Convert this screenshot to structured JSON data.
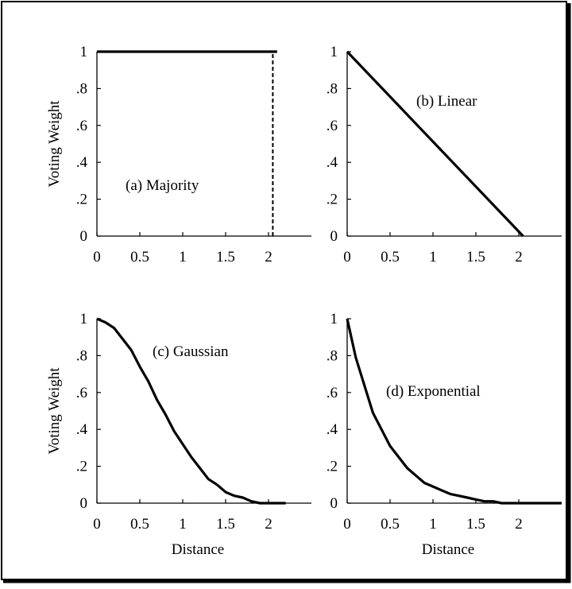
{
  "chart_data": [
    {
      "type": "line",
      "annotation": "(a) Majority",
      "ylabel": "Voting Weight",
      "xlabel": "",
      "xlim": [
        0,
        2.5
      ],
      "ylim": [
        0,
        1
      ],
      "x_ticks": [
        "0",
        "0.5",
        "1",
        "1.5",
        "2"
      ],
      "y_ticks": [
        "0",
        ".2",
        ".4",
        ".6",
        ".8",
        "1"
      ],
      "series": [
        {
          "x": [
            0,
            2.1
          ],
          "y": [
            1,
            1
          ],
          "style": "solid"
        },
        {
          "x": [
            2.05,
            2.05
          ],
          "y": [
            0,
            1
          ],
          "style": "dashed"
        }
      ]
    },
    {
      "type": "line",
      "annotation": "(b) Linear",
      "ylabel": "",
      "xlabel": "",
      "xlim": [
        0,
        2.5
      ],
      "ylim": [
        0,
        1
      ],
      "x_ticks": [
        "0",
        "0.5",
        "1",
        "1.5",
        "2"
      ],
      "y_ticks": [
        "0",
        ".2",
        ".4",
        ".6",
        ".8",
        "1"
      ],
      "series": [
        {
          "x": [
            0,
            2.05
          ],
          "y": [
            1,
            0
          ],
          "style": "solid"
        }
      ]
    },
    {
      "type": "line",
      "annotation": "(c) Gaussian",
      "ylabel": "Voting Weight",
      "xlabel": "Distance",
      "xlim": [
        0,
        2.5
      ],
      "ylim": [
        0,
        1
      ],
      "x_ticks": [
        "0",
        "0.5",
        "1",
        "1.5",
        "2"
      ],
      "y_ticks": [
        "0",
        ".2",
        ".4",
        ".6",
        ".8",
        "1"
      ],
      "series": [
        {
          "x": [
            0,
            0.1,
            0.2,
            0.3,
            0.4,
            0.5,
            0.6,
            0.7,
            0.8,
            0.9,
            1.0,
            1.1,
            1.2,
            1.3,
            1.4,
            1.5,
            1.6,
            1.7,
            1.8,
            1.9,
            2.0,
            2.1,
            2.2
          ],
          "y": [
            1.0,
            0.98,
            0.95,
            0.89,
            0.83,
            0.74,
            0.66,
            0.56,
            0.48,
            0.39,
            0.32,
            0.25,
            0.19,
            0.13,
            0.1,
            0.06,
            0.04,
            0.03,
            0.01,
            0.0,
            0.0,
            0.0,
            0.0
          ],
          "style": "solid"
        }
      ]
    },
    {
      "type": "line",
      "annotation": "(d) Exponential",
      "ylabel": "",
      "xlabel": "Distance",
      "xlim": [
        0,
        2.5
      ],
      "ylim": [
        0,
        1
      ],
      "x_ticks": [
        "0",
        "0.5",
        "1",
        "1.5",
        "2"
      ],
      "y_ticks": [
        "0",
        ".2",
        ".4",
        ".6",
        ".8",
        "1"
      ],
      "series": [
        {
          "x": [
            0,
            0.1,
            0.2,
            0.3,
            0.4,
            0.5,
            0.6,
            0.7,
            0.8,
            0.9,
            1.0,
            1.1,
            1.2,
            1.3,
            1.4,
            1.5,
            1.6,
            1.7,
            1.8,
            2.0,
            2.2,
            2.5
          ],
          "y": [
            1.0,
            0.79,
            0.64,
            0.49,
            0.4,
            0.31,
            0.25,
            0.19,
            0.15,
            0.11,
            0.09,
            0.07,
            0.05,
            0.04,
            0.03,
            0.02,
            0.01,
            0.01,
            0.0,
            0.0,
            0.0,
            0.0
          ],
          "style": "solid"
        }
      ]
    }
  ]
}
